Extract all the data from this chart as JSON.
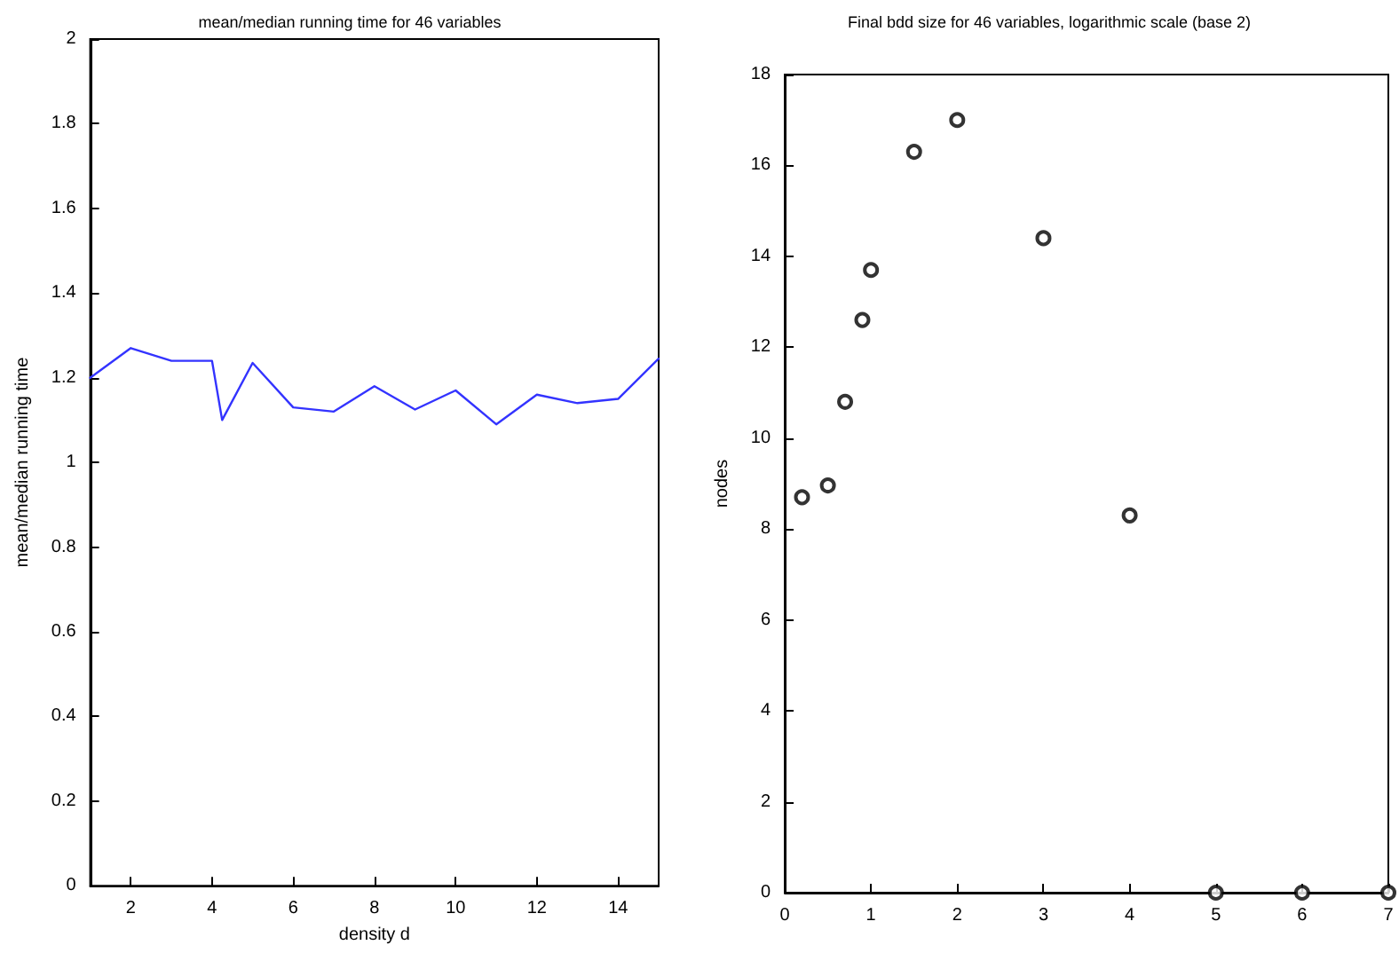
{
  "chart_data": [
    {
      "type": "line",
      "title": "mean/median running time for 46 variables",
      "xlabel": "density d",
      "ylabel": "mean/median running time",
      "x": [
        1,
        2,
        3,
        4,
        4.25,
        5,
        6,
        7,
        8,
        9,
        10,
        11,
        12,
        13,
        14,
        15
      ],
      "series": [
        {
          "color": "#3333ff",
          "values": [
            1.2,
            1.27,
            1.24,
            1.24,
            1.1,
            1.235,
            1.13,
            1.12,
            1.18,
            1.125,
            1.17,
            1.09,
            1.16,
            1.14,
            1.15,
            1.245
          ]
        }
      ],
      "xlim": [
        1,
        15
      ],
      "xticks": [
        2,
        4,
        6,
        8,
        10,
        12,
        14
      ],
      "ylim": [
        0,
        2
      ],
      "yticks": [
        0,
        0.2,
        0.4,
        0.6,
        0.8,
        1,
        1.2,
        1.4,
        1.6,
        1.8,
        2
      ],
      "marker": "none",
      "line_style": "solid"
    },
    {
      "type": "scatter",
      "title": "Final bdd size for 46 variables, logarithmic scale (base 2)",
      "ylabel": "nodes",
      "x": [
        0.2,
        0.5,
        0.7,
        0.9,
        1,
        1.5,
        2,
        3,
        4,
        5,
        6,
        7
      ],
      "series": [
        {
          "color": "#000000",
          "values": [
            8.7,
            8.96,
            10.8,
            12.6,
            13.7,
            16.3,
            17.0,
            14.4,
            8.3,
            0,
            0,
            0
          ]
        }
      ],
      "xlim": [
        0,
        7
      ],
      "xticks": [
        0,
        1,
        2,
        3,
        4,
        5,
        6,
        7
      ],
      "ylim": [
        0,
        18
      ],
      "yticks": [
        0,
        2,
        4,
        6,
        8,
        10,
        12,
        14,
        16,
        18
      ],
      "marker": "circle"
    }
  ]
}
